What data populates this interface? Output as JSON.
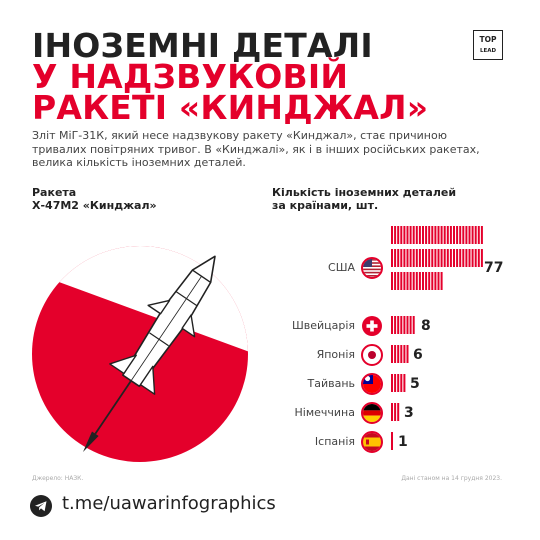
{
  "title": {
    "line1": "ІНОЗЕМНІ ДЕТАЛІ",
    "line2": "У НАДЗВУКОВІЙ",
    "line3": "РАКЕТІ «КИНДЖАЛ»"
  },
  "logo": {
    "line1": "TOP",
    "line2": "LEAD"
  },
  "intro": {
    "line1": "Зліт МіГ-31К, який несе надзвукову ракету «Кинджал», стає причиною",
    "line2": "тривалих повітряних тривог. В «Кинджалі», як і в інших російських ракетах,",
    "line3": "велика кількість іноземних деталей."
  },
  "rocket_label": {
    "line1": "Ракета",
    "line2": "Х-47М2 «Кинджал»"
  },
  "chart_title": {
    "line1": "Кількість іноземних деталей",
    "line2": "за країнами, шт."
  },
  "colors": {
    "accent_red": "#e4002b",
    "text_dark": "#222222"
  },
  "chart_data": {
    "type": "bar",
    "categories": [
      "США",
      "Швейцарія",
      "Японія",
      "Тайвань",
      "Німеччина",
      "Іспанія"
    ],
    "values": [
      77,
      8,
      6,
      5,
      3,
      1
    ],
    "title": "Кількість іноземних деталей за країнами, шт.",
    "xlabel": "",
    "ylabel": "",
    "flags": [
      "usa-flag-icon",
      "switzerland-flag-icon",
      "japan-flag-icon",
      "taiwan-flag-icon",
      "germany-flag-icon",
      "spain-flag-icon"
    ]
  },
  "footer": {
    "source": "Джерело: НАЗК.",
    "date": "Дані станом на 14 грудня 2023.",
    "telegram": "t.me/uawarinfographics",
    "telegram_icon": "telegram-icon"
  }
}
